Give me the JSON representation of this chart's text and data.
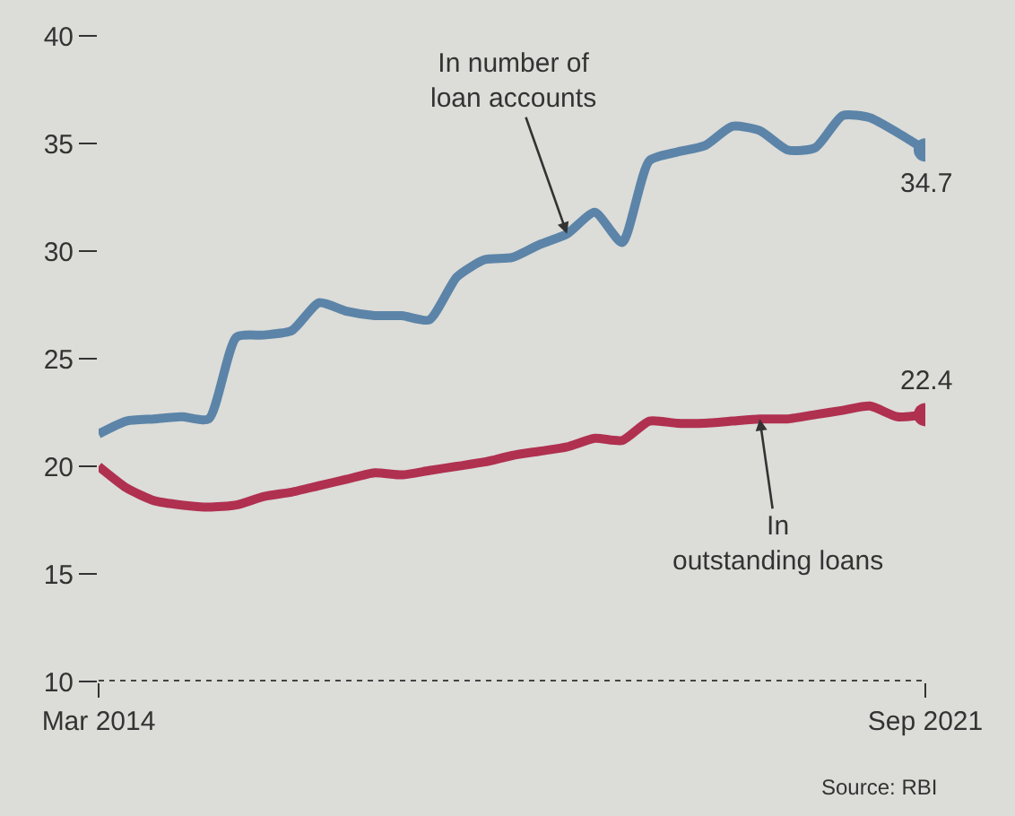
{
  "chart_data": {
    "type": "line",
    "x": [
      "2014-03",
      "2014-06",
      "2014-09",
      "2014-12",
      "2015-03",
      "2015-06",
      "2015-09",
      "2015-12",
      "2016-03",
      "2016-06",
      "2016-09",
      "2016-12",
      "2017-03",
      "2017-06",
      "2017-09",
      "2017-12",
      "2018-03",
      "2018-06",
      "2018-09",
      "2018-12",
      "2019-03",
      "2019-06",
      "2019-09",
      "2019-12",
      "2020-03",
      "2020-06",
      "2020-09",
      "2020-12",
      "2021-03",
      "2021-06",
      "2021-09"
    ],
    "series": [
      {
        "name": "In number of loan accounts",
        "color": "#5b84a8",
        "values": [
          21.5,
          22.1,
          22.2,
          22.3,
          22.2,
          26.0,
          26.1,
          26.3,
          27.6,
          27.2,
          27.0,
          27.0,
          26.8,
          28.8,
          29.6,
          29.7,
          30.3,
          30.8,
          31.8,
          30.4,
          34.2,
          34.6,
          34.9,
          35.8,
          35.6,
          34.7,
          34.8,
          36.3,
          36.2,
          35.5,
          34.7
        ],
        "value_labels": [
          null,
          null,
          null,
          null,
          null,
          null,
          null,
          null,
          null,
          null,
          null,
          null,
          null,
          null,
          null,
          null,
          null,
          null,
          null,
          null,
          null,
          null,
          null,
          null,
          null,
          null,
          null,
          null,
          null,
          null,
          "34.7"
        ]
      },
      {
        "name": "In outstanding loans",
        "color": "#b03050",
        "values": [
          20.0,
          19.0,
          18.4,
          18.2,
          18.1,
          18.2,
          18.6,
          18.8,
          19.1,
          19.4,
          19.7,
          19.6,
          19.8,
          20.0,
          20.2,
          20.5,
          20.7,
          20.9,
          21.3,
          21.2,
          22.1,
          22.0,
          22.0,
          22.1,
          22.2,
          22.2,
          22.4,
          22.6,
          22.8,
          22.3,
          22.4
        ],
        "value_labels": [
          null,
          null,
          null,
          null,
          null,
          null,
          null,
          null,
          null,
          null,
          null,
          null,
          null,
          null,
          null,
          null,
          null,
          null,
          null,
          null,
          null,
          null,
          null,
          null,
          null,
          null,
          null,
          null,
          null,
          null,
          "22.4"
        ]
      }
    ],
    "xlim": [
      "2014-03",
      "2021-09"
    ],
    "xticks": [
      {
        "value": "2014-03",
        "label": "Mar 2014"
      },
      {
        "value": "2021-09",
        "label": "Sep 2021"
      }
    ],
    "ylim": [
      10,
      40
    ],
    "yticks": [
      10,
      15,
      20,
      25,
      30,
      35,
      40
    ],
    "grid": false,
    "legend": false,
    "annotations": [
      "Source: RBI"
    ]
  }
}
